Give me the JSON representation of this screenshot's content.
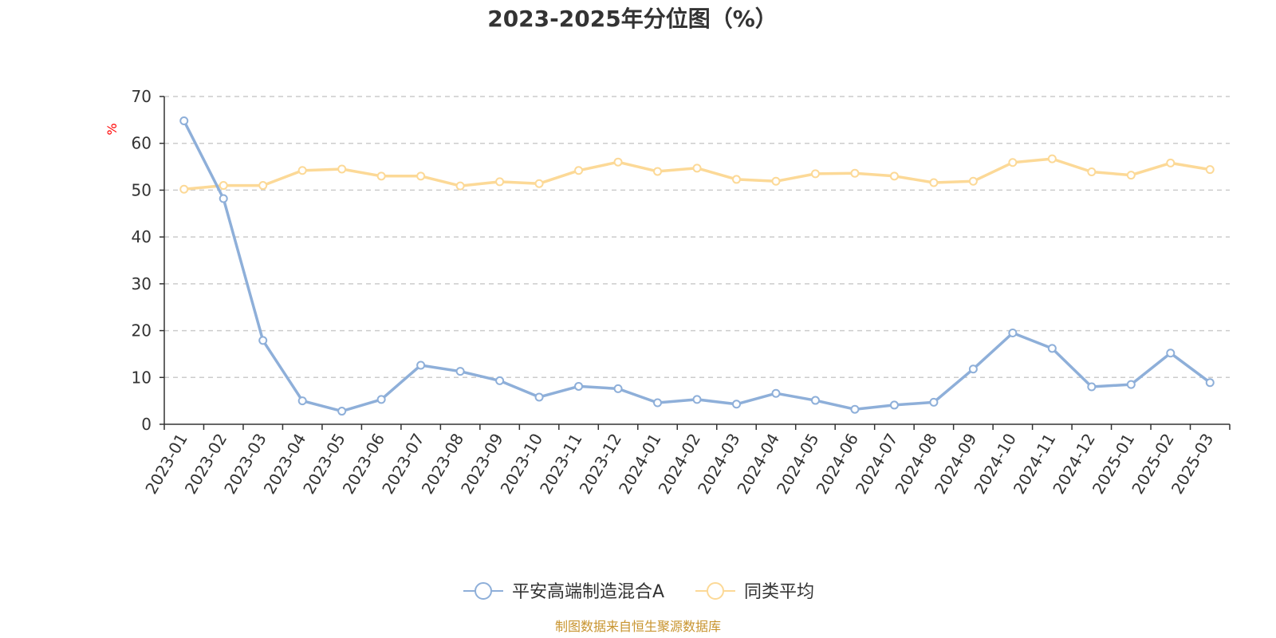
{
  "chart_data": {
    "type": "line",
    "title": "2023-2025年分位图（%）",
    "ylabel": "%",
    "ylim": [
      0,
      70
    ],
    "yticks": [
      "0",
      "10",
      "20",
      "30",
      "40",
      "50",
      "60",
      "70"
    ],
    "grid": true,
    "legend_position": "bottom",
    "categories": [
      "2023-01",
      "2023-02",
      "2023-03",
      "2023-04",
      "2023-05",
      "2023-06",
      "2023-07",
      "2023-08",
      "2023-09",
      "2023-10",
      "2023-11",
      "2023-12",
      "2024-01",
      "2024-02",
      "2024-03",
      "2024-04",
      "2024-05",
      "2024-06",
      "2024-07",
      "2024-08",
      "2024-09",
      "2024-10",
      "2024-11",
      "2024-12",
      "2025-01",
      "2025-02",
      "2025-03"
    ],
    "series": [
      {
        "name": "平安高端制造混合A",
        "color": "#8eafd9",
        "values": [
          64.8,
          48.2,
          17.9,
          5.0,
          2.8,
          5.3,
          12.6,
          11.3,
          9.3,
          5.8,
          8.1,
          7.6,
          4.6,
          5.3,
          4.3,
          6.6,
          5.1,
          3.2,
          4.1,
          4.7,
          11.8,
          19.5,
          16.2,
          8.0,
          8.5,
          15.2,
          8.9
        ]
      },
      {
        "name": "同类平均",
        "color": "#fcd997",
        "values": [
          50.2,
          51.0,
          51.0,
          54.2,
          54.5,
          53.0,
          53.0,
          50.9,
          51.8,
          51.4,
          54.2,
          56.0,
          54.0,
          54.7,
          52.3,
          51.9,
          53.5,
          53.6,
          53.0,
          51.6,
          51.9,
          55.9,
          56.7,
          53.9,
          53.2,
          55.8,
          54.4
        ]
      }
    ],
    "source": "制图数据来自恒生聚源数据库"
  }
}
